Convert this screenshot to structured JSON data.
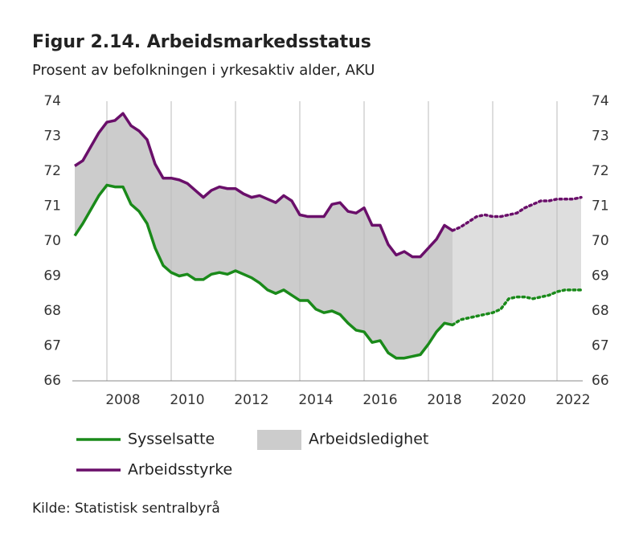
{
  "chart_data": {
    "type": "line",
    "title": "Figur 2.14. Arbeidsmarkedsstatus",
    "subtitle": "Prosent av befolkningen i yrkesaktiv alder, AKU",
    "source": "Kilde: Statistisk sentralbyrå",
    "x": [
      2007,
      2007.25,
      2007.5,
      2007.75,
      2008,
      2008.25,
      2008.5,
      2008.75,
      2009,
      2009.25,
      2009.5,
      2009.75,
      2010,
      2010.25,
      2010.5,
      2010.75,
      2011,
      2011.25,
      2011.5,
      2011.75,
      2012,
      2012.25,
      2012.5,
      2012.75,
      2013,
      2013.25,
      2013.5,
      2013.75,
      2014,
      2014.25,
      2014.5,
      2014.75,
      2015,
      2015.25,
      2015.5,
      2015.75,
      2016,
      2016.25,
      2016.5,
      2016.75,
      2017,
      2017.25,
      2017.5,
      2017.75,
      2018,
      2018.25,
      2018.5,
      2018.75,
      2019,
      2019.25,
      2019.5,
      2019.75,
      2020,
      2020.25,
      2020.5,
      2020.75,
      2021,
      2021.25,
      2021.5,
      2021.75,
      2022,
      2022.25,
      2022.5,
      2022.75
    ],
    "forecast_from": 2018.75,
    "series": [
      {
        "name": "Sysselsatte",
        "color": "#1a8a1a",
        "values": [
          70.15,
          70.5,
          70.9,
          71.3,
          71.6,
          71.55,
          71.55,
          71.05,
          70.85,
          70.5,
          69.8,
          69.3,
          69.1,
          69.0,
          69.05,
          68.9,
          68.9,
          69.05,
          69.1,
          69.05,
          69.15,
          69.05,
          68.95,
          68.8,
          68.6,
          68.5,
          68.6,
          68.45,
          68.3,
          68.3,
          68.05,
          67.95,
          68.0,
          67.9,
          67.65,
          67.45,
          67.4,
          67.1,
          67.15,
          66.8,
          66.65,
          66.65,
          66.7,
          66.75,
          67.05,
          67.4,
          67.65,
          67.6,
          67.75,
          67.8,
          67.85,
          67.9,
          67.95,
          68.05,
          68.35,
          68.4,
          68.4,
          68.35,
          68.4,
          68.45,
          68.55,
          68.6,
          68.6,
          68.6
        ]
      },
      {
        "name": "Arbeidsstyrke",
        "color": "#6a0f6a",
        "values": [
          72.15,
          72.3,
          72.7,
          73.1,
          73.4,
          73.45,
          73.65,
          73.3,
          73.15,
          72.9,
          72.2,
          71.8,
          71.8,
          71.75,
          71.65,
          71.45,
          71.25,
          71.45,
          71.55,
          71.5,
          71.5,
          71.35,
          71.25,
          71.3,
          71.2,
          71.1,
          71.3,
          71.15,
          70.75,
          70.7,
          70.7,
          70.7,
          71.05,
          71.1,
          70.85,
          70.8,
          70.95,
          70.45,
          70.45,
          69.9,
          69.6,
          69.7,
          69.55,
          69.55,
          69.8,
          70.05,
          70.45,
          70.3,
          70.4,
          70.55,
          70.7,
          70.75,
          70.7,
          70.7,
          70.75,
          70.8,
          70.95,
          71.05,
          71.15,
          71.15,
          71.2,
          71.2,
          71.2,
          71.25
        ]
      }
    ],
    "band": {
      "name": "Arbeidsledighet",
      "color": "#cccccc",
      "forecast_color": "#dedede"
    },
    "xlim": [
      2006.925,
      2022.8
    ],
    "xticks": [
      2008,
      2010,
      2012,
      2014,
      2016,
      2018,
      2020,
      2022
    ],
    "ylim": [
      66,
      74
    ],
    "yticks": [
      66,
      67,
      68,
      69,
      70,
      71,
      72,
      73,
      74
    ],
    "y2lim": [
      66,
      74
    ],
    "y2ticks": [
      66,
      67,
      68,
      69,
      70,
      71,
      72,
      73,
      74
    ],
    "grid": true
  }
}
